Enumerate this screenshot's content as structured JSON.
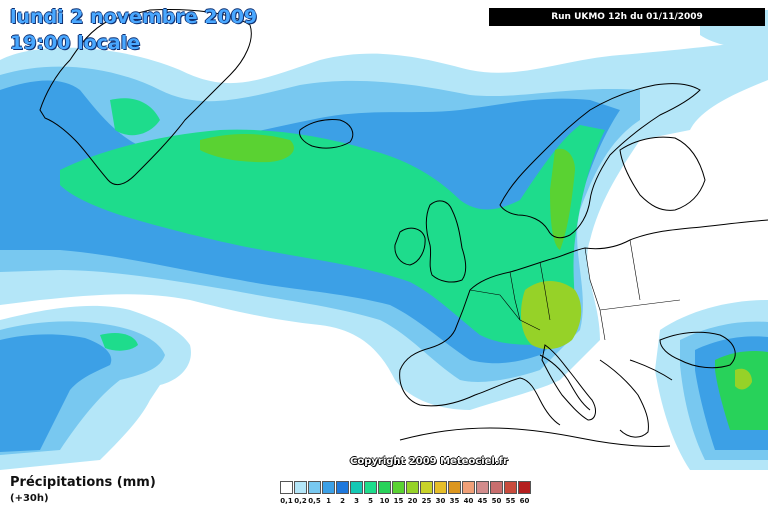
{
  "map": {
    "title_line1": "lundi 2 novembre 2009",
    "title_line2": "19:00 locale",
    "run_label": "Run UKMO 12h du 01/11/2009",
    "copyright": "Copyright 2009 Meteociel.fr",
    "variable_label": "Précipitations (mm)",
    "lead_time": "(+30h)",
    "colors": {
      "coast": "#000000",
      "light_blue": "#9ed8f5",
      "mid_blue": "#4fb2ea",
      "deep_blue": "#2a7de0",
      "teal": "#20c8b0",
      "green": "#30d060",
      "yellow_green": "#a0d830"
    },
    "legend": [
      {
        "label": "0,1",
        "color": "#ffffff"
      },
      {
        "label": "0,2",
        "color": "#b4e6f8"
      },
      {
        "label": "0,5",
        "color": "#78c8f0"
      },
      {
        "label": "1",
        "color": "#3ca0e6"
      },
      {
        "label": "2",
        "color": "#1e78dc"
      },
      {
        "label": "3",
        "color": "#14c8b4"
      },
      {
        "label": "5",
        "color": "#1edc8c"
      },
      {
        "label": "10",
        "color": "#28d25a"
      },
      {
        "label": "15",
        "color": "#5ad232"
      },
      {
        "label": "20",
        "color": "#96d228"
      },
      {
        "label": "25",
        "color": "#c8d228"
      },
      {
        "label": "30",
        "color": "#e6be28"
      },
      {
        "label": "35",
        "color": "#dc961e"
      },
      {
        "label": "40",
        "color": "#f0a078"
      },
      {
        "label": "45",
        "color": "#d28c8c"
      },
      {
        "label": "50",
        "color": "#c86e6e"
      },
      {
        "label": "55",
        "color": "#c84b3c"
      },
      {
        "label": "60",
        "color": "#b41e1e"
      }
    ]
  }
}
